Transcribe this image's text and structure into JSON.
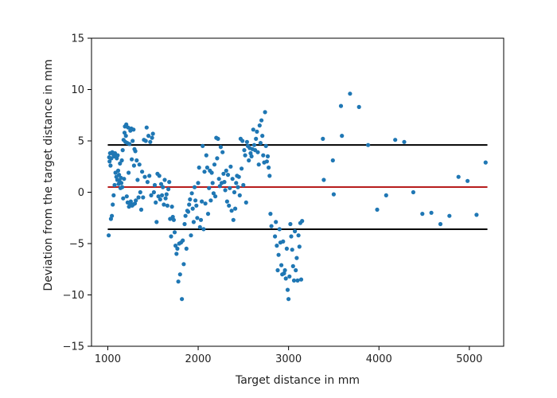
{
  "chart_data": {
    "type": "scatter",
    "xlabel": "Target distance in mm",
    "ylabel": "Deviation from the target distance in mm",
    "xlim": [
      820,
      5380
    ],
    "ylim": [
      -15,
      15
    ],
    "xticks": [
      1000,
      2000,
      3000,
      4000,
      5000
    ],
    "yticks": [
      -15,
      -10,
      -5,
      0,
      5,
      10,
      15
    ],
    "grid": false,
    "colors": {
      "points": "#1f77b4",
      "mean_line": "#b71c1c",
      "limit_lines": "#000000"
    },
    "reference_lines": [
      {
        "kind": "upper-limit",
        "y": 4.6,
        "x_range": [
          1000,
          5200
        ],
        "color": "#000000"
      },
      {
        "kind": "mean",
        "y": 0.5,
        "x_range": [
          1000,
          5200
        ],
        "color": "#b71c1c"
      },
      {
        "kind": "lower-limit",
        "y": -3.6,
        "x_range": [
          1000,
          5200
        ],
        "color": "#000000"
      }
    ],
    "points": [
      [
        1010,
        -4.2
      ],
      [
        1015,
        3.4
      ],
      [
        1020,
        3.0
      ],
      [
        1025,
        3.8
      ],
      [
        1030,
        2.6
      ],
      [
        1035,
        -2.6
      ],
      [
        1040,
        3.3
      ],
      [
        1045,
        -2.3
      ],
      [
        1050,
        3.9
      ],
      [
        1055,
        -1.2
      ],
      [
        1060,
        3.7
      ],
      [
        1065,
        -0.3
      ],
      [
        1070,
        3.5
      ],
      [
        1075,
        0.7
      ],
      [
        1080,
        3.8
      ],
      [
        1085,
        1.9
      ],
      [
        1090,
        3.6
      ],
      [
        1095,
        1.5
      ],
      [
        1100,
        3.3
      ],
      [
        1105,
        1.2
      ],
      [
        1110,
        3.6
      ],
      [
        1115,
        2.1
      ],
      [
        1120,
        0.8
      ],
      [
        1125,
        1.7
      ],
      [
        1130,
        1.1
      ],
      [
        1135,
        2.8
      ],
      [
        1140,
        0.4
      ],
      [
        1145,
        1.4
      ],
      [
        1150,
        0.9
      ],
      [
        1155,
        3.1
      ],
      [
        1160,
        0.5
      ],
      [
        1165,
        4.1
      ],
      [
        1170,
        -0.6
      ],
      [
        1175,
        5.1
      ],
      [
        1180,
        1.3
      ],
      [
        1185,
        5.8
      ],
      [
        1190,
        6.4
      ],
      [
        1195,
        4.9
      ],
      [
        1200,
        5.5
      ],
      [
        1205,
        6.6
      ],
      [
        1210,
        -0.4
      ],
      [
        1215,
        4.8
      ],
      [
        1220,
        -1.0
      ],
      [
        1225,
        6.3
      ],
      [
        1230,
        1.9
      ],
      [
        1235,
        -1.4
      ],
      [
        1240,
        4.7
      ],
      [
        1245,
        -1.1
      ],
      [
        1250,
        6.0
      ],
      [
        1255,
        -0.9
      ],
      [
        1260,
        6.2
      ],
      [
        1265,
        3.2
      ],
      [
        1270,
        -1.3
      ],
      [
        1275,
        5.0
      ],
      [
        1280,
        -1.2
      ],
      [
        1285,
        6.1
      ],
      [
        1290,
        2.6
      ],
      [
        1295,
        4.2
      ],
      [
        1300,
        -1.1
      ],
      [
        1305,
        4.0
      ],
      [
        1310,
        -0.8
      ],
      [
        1320,
        3.1
      ],
      [
        1330,
        1.2
      ],
      [
        1340,
        -0.5
      ],
      [
        1350,
        2.7
      ],
      [
        1360,
        0.0
      ],
      [
        1370,
        -1.7
      ],
      [
        1380,
        2.0
      ],
      [
        1390,
        -0.5
      ],
      [
        1400,
        5.1
      ],
      [
        1410,
        1.5
      ],
      [
        1420,
        5.0
      ],
      [
        1430,
        6.3
      ],
      [
        1440,
        1.0
      ],
      [
        1450,
        5.5
      ],
      [
        1460,
        1.6
      ],
      [
        1470,
        4.9
      ],
      [
        1480,
        -0.3
      ],
      [
        1490,
        5.3
      ],
      [
        1500,
        5.7
      ],
      [
        1510,
        0.0
      ],
      [
        1520,
        0.7
      ],
      [
        1530,
        -1.0
      ],
      [
        1540,
        -2.9
      ],
      [
        1550,
        1.8
      ],
      [
        1560,
        -0.4
      ],
      [
        1570,
        1.6
      ],
      [
        1580,
        -0.7
      ],
      [
        1590,
        0.8
      ],
      [
        1600,
        -0.3
      ],
      [
        1610,
        0.5
      ],
      [
        1620,
        -1.2
      ],
      [
        1630,
        1.2
      ],
      [
        1640,
        -0.6
      ],
      [
        1650,
        -0.2
      ],
      [
        1660,
        -1.3
      ],
      [
        1670,
        0.3
      ],
      [
        1680,
        1.0
      ],
      [
        1690,
        -2.6
      ],
      [
        1700,
        -4.3
      ],
      [
        1710,
        -1.4
      ],
      [
        1720,
        -2.4
      ],
      [
        1730,
        -2.7
      ],
      [
        1740,
        -3.9
      ],
      [
        1750,
        -5.2
      ],
      [
        1760,
        -6.0
      ],
      [
        1770,
        -5.5
      ],
      [
        1780,
        -8.7
      ],
      [
        1790,
        -5.0
      ],
      [
        1800,
        -8.0
      ],
      [
        1810,
        -4.9
      ],
      [
        1820,
        -10.4
      ],
      [
        1830,
        -4.7
      ],
      [
        1840,
        -7.0
      ],
      [
        1850,
        -3.1
      ],
      [
        1860,
        -2.3
      ],
      [
        1870,
        -5.5
      ],
      [
        1880,
        -1.8
      ],
      [
        1890,
        -1.9
      ],
      [
        1900,
        -1.2
      ],
      [
        1910,
        -0.7
      ],
      [
        1920,
        -4.2
      ],
      [
        1930,
        -0.1
      ],
      [
        1940,
        -1.6
      ],
      [
        1950,
        -2.9
      ],
      [
        1960,
        0.5
      ],
      [
        1970,
        -0.8
      ],
      [
        1980,
        -1.3
      ],
      [
        1990,
        -2.5
      ],
      [
        2000,
        0.9
      ],
      [
        2010,
        2.4
      ],
      [
        2020,
        -3.4
      ],
      [
        2030,
        -2.7
      ],
      [
        2040,
        -0.9
      ],
      [
        2050,
        4.5
      ],
      [
        2060,
        -3.6
      ],
      [
        2070,
        2.0
      ],
      [
        2080,
        -1.1
      ],
      [
        2090,
        3.6
      ],
      [
        2100,
        2.4
      ],
      [
        2110,
        -2.1
      ],
      [
        2120,
        0.4
      ],
      [
        2130,
        2.1
      ],
      [
        2140,
        -0.8
      ],
      [
        2150,
        1.9
      ],
      [
        2160,
        0.9
      ],
      [
        2170,
        -0.1
      ],
      [
        2180,
        2.7
      ],
      [
        2190,
        -0.4
      ],
      [
        2200,
        5.3
      ],
      [
        2210,
        3.3
      ],
      [
        2220,
        5.2
      ],
      [
        2230,
        1.3
      ],
      [
        2240,
        0.6
      ],
      [
        2250,
        4.4
      ],
      [
        2260,
        0.9
      ],
      [
        2270,
        3.9
      ],
      [
        2280,
        1.8
      ],
      [
        2290,
        1.0
      ],
      [
        2300,
        0.2
      ],
      [
        2310,
        2.1
      ],
      [
        2320,
        -0.9
      ],
      [
        2330,
        1.7
      ],
      [
        2340,
        -1.3
      ],
      [
        2350,
        0.4
      ],
      [
        2360,
        2.5
      ],
      [
        2370,
        -1.8
      ],
      [
        2380,
        1.3
      ],
      [
        2390,
        -2.7
      ],
      [
        2400,
        0.0
      ],
      [
        2410,
        -1.6
      ],
      [
        2420,
        0.9
      ],
      [
        2430,
        1.6
      ],
      [
        2440,
        0.5
      ],
      [
        2450,
        1.5
      ],
      [
        2460,
        -0.3
      ],
      [
        2470,
        5.2
      ],
      [
        2480,
        2.3
      ],
      [
        2490,
        5.0
      ],
      [
        2500,
        0.7
      ],
      [
        2510,
        4.1
      ],
      [
        2520,
        3.6
      ],
      [
        2530,
        -1.0
      ],
      [
        2540,
        4.9
      ],
      [
        2550,
        4.5
      ],
      [
        2560,
        3.1
      ],
      [
        2570,
        4.3
      ],
      [
        2580,
        3.8
      ],
      [
        2590,
        3.5
      ],
      [
        2600,
        4.2
      ],
      [
        2610,
        6.1
      ],
      [
        2620,
        4.6
      ],
      [
        2630,
        4.1
      ],
      [
        2640,
        5.2
      ],
      [
        2650,
        5.9
      ],
      [
        2660,
        3.9
      ],
      [
        2670,
        2.7
      ],
      [
        2680,
        6.5
      ],
      [
        2690,
        4.8
      ],
      [
        2700,
        7.0
      ],
      [
        2710,
        5.5
      ],
      [
        2720,
        3.6
      ],
      [
        2730,
        2.9
      ],
      [
        2740,
        7.8
      ],
      [
        2750,
        4.5
      ],
      [
        2760,
        3.0
      ],
      [
        2770,
        3.5
      ],
      [
        2780,
        2.4
      ],
      [
        2790,
        1.6
      ],
      [
        2800,
        -2.1
      ],
      [
        2810,
        -3.3
      ],
      [
        2850,
        -4.3
      ],
      [
        2860,
        -2.9
      ],
      [
        2870,
        -5.2
      ],
      [
        2880,
        -7.6
      ],
      [
        2890,
        -6.1
      ],
      [
        2900,
        -3.6
      ],
      [
        2910,
        -4.9
      ],
      [
        2920,
        -7.1
      ],
      [
        2930,
        -8.0
      ],
      [
        2940,
        -4.8
      ],
      [
        2950,
        -7.9
      ],
      [
        2960,
        -7.6
      ],
      [
        2970,
        -8.4
      ],
      [
        2980,
        -5.5
      ],
      [
        2990,
        -9.5
      ],
      [
        3000,
        -10.4
      ],
      [
        3010,
        -8.2
      ],
      [
        3020,
        -3.1
      ],
      [
        3030,
        -4.3
      ],
      [
        3040,
        -5.6
      ],
      [
        3050,
        -7.2
      ],
      [
        3060,
        -8.6
      ],
      [
        3070,
        -3.8
      ],
      [
        3080,
        -7.6
      ],
      [
        3090,
        -6.4
      ],
      [
        3100,
        -8.6
      ],
      [
        3110,
        -4.2
      ],
      [
        3120,
        -5.3
      ],
      [
        3130,
        -3.0
      ],
      [
        3140,
        -8.5
      ],
      [
        3150,
        -2.8
      ],
      [
        3380,
        5.2
      ],
      [
        3390,
        1.2
      ],
      [
        3490,
        3.1
      ],
      [
        3500,
        -0.2
      ],
      [
        3580,
        8.4
      ],
      [
        3590,
        5.5
      ],
      [
        3680,
        9.6
      ],
      [
        3780,
        8.3
      ],
      [
        3880,
        4.6
      ],
      [
        3980,
        -1.7
      ],
      [
        4080,
        -0.3
      ],
      [
        4180,
        5.1
      ],
      [
        4280,
        4.9
      ],
      [
        4380,
        0.0
      ],
      [
        4480,
        -2.1
      ],
      [
        4580,
        -2.0
      ],
      [
        4680,
        -3.1
      ],
      [
        4780,
        -2.3
      ],
      [
        4880,
        1.5
      ],
      [
        4980,
        1.1
      ],
      [
        5080,
        -2.2
      ],
      [
        5180,
        2.9
      ]
    ]
  }
}
